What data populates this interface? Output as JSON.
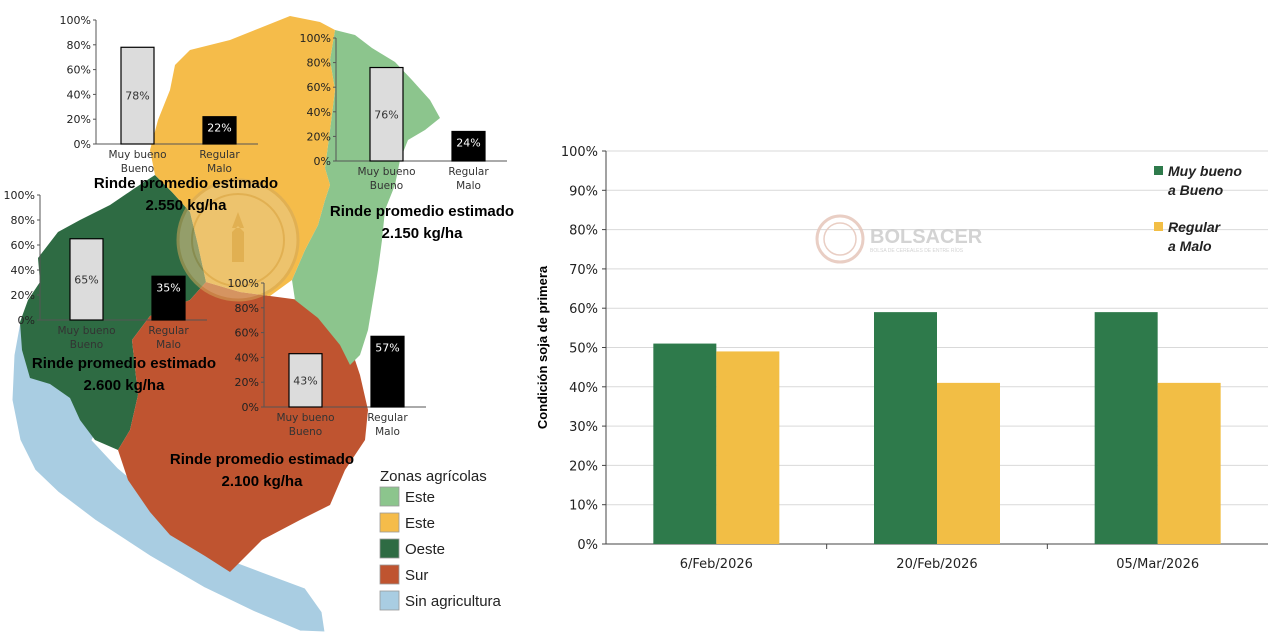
{
  "colors": {
    "este_green": "#8CC58D",
    "este_orange": "#F5BC4A",
    "oeste": "#2E6B43",
    "sur": "#BF5430",
    "sin_agricultura": "#A9CDE2",
    "bar_good": "#DCDCDC",
    "bar_bad": "#000000",
    "series_good": "#2E7A4B",
    "series_bad": "#F2BE45"
  },
  "map": {
    "legend_title": "Zonas agrícolas",
    "legend_items": [
      {
        "label": "Este",
        "color": "#8CC58D"
      },
      {
        "label": "Este",
        "color": "#F5BC4A"
      },
      {
        "label": "Oeste",
        "color": "#2E6B43"
      },
      {
        "label": "Sur",
        "color": "#BF5430"
      },
      {
        "label": "Sin agricultura",
        "color": "#A9CDE2"
      }
    ],
    "watermark_text": "BOLSA DE CEREALES DE ENTRE RÍOS"
  },
  "chart_data": [
    {
      "type": "bar",
      "region": "Este (naranja)",
      "categories": [
        "Muy bueno Bueno",
        "Regular Malo"
      ],
      "values": [
        78,
        22
      ],
      "value_labels": [
        "78%",
        "22%"
      ],
      "ylim": [
        0,
        100
      ],
      "yticks": [
        "0%",
        "20%",
        "40%",
        "60%",
        "80%",
        "100%"
      ],
      "cat_lines": [
        [
          "Muy bueno",
          "Bueno"
        ],
        [
          "Regular",
          "Malo"
        ]
      ],
      "rinde_line1": "Rinde promedio estimado",
      "rinde_line2": "2.550 kg/ha"
    },
    {
      "type": "bar",
      "region": "Este (verde)",
      "categories": [
        "Muy bueno Bueno",
        "Regular Malo"
      ],
      "values": [
        76,
        24
      ],
      "value_labels": [
        "76%",
        "24%"
      ],
      "ylim": [
        0,
        100
      ],
      "yticks": [
        "0%",
        "20%",
        "40%",
        "60%",
        "80%",
        "100%"
      ],
      "cat_lines": [
        [
          "Muy bueno",
          "Bueno"
        ],
        [
          "Regular",
          "Malo"
        ]
      ],
      "rinde_line1": "Rinde promedio estimado",
      "rinde_line2": "2.150 kg/ha"
    },
    {
      "type": "bar",
      "region": "Oeste",
      "categories": [
        "Muy bueno Bueno",
        "Regular Malo"
      ],
      "values": [
        65,
        35
      ],
      "value_labels": [
        "65%",
        "35%"
      ],
      "ylim": [
        0,
        100
      ],
      "yticks": [
        "0%",
        "20%",
        "40%",
        "60%",
        "80%",
        "100%"
      ],
      "cat_lines": [
        [
          "Muy bueno",
          "Bueno"
        ],
        [
          "Regular",
          "Malo"
        ]
      ],
      "rinde_line1": "Rinde promedio estimado",
      "rinde_line2": "2.600 kg/ha"
    },
    {
      "type": "bar",
      "region": "Sur",
      "categories": [
        "Muy bueno Bueno",
        "Regular Malo"
      ],
      "values": [
        43,
        57
      ],
      "value_labels": [
        "43%",
        "57%"
      ],
      "ylim": [
        0,
        100
      ],
      "yticks": [
        "0%",
        "20%",
        "40%",
        "60%",
        "80%",
        "100%"
      ],
      "cat_lines": [
        [
          "Muy bueno",
          "Bueno"
        ],
        [
          "Regular",
          "Malo"
        ]
      ],
      "rinde_line1": "Rinde promedio estimado",
      "rinde_line2": "2.100 kg/ha"
    },
    {
      "type": "bar",
      "categories": [
        "6/Feb/2026",
        "20/Feb/2026",
        "05/Mar/2026"
      ],
      "series": [
        {
          "name": "Muy bueno a Bueno",
          "legend_lines": [
            "Muy bueno",
            "a Bueno"
          ],
          "values": [
            51,
            59,
            59
          ]
        },
        {
          "name": "Regular a Malo",
          "legend_lines": [
            "Regular",
            "a Malo"
          ],
          "values": [
            49,
            41,
            41
          ]
        }
      ],
      "ylabel": "Condición soja de primera",
      "ylim": [
        0,
        100
      ],
      "yticks": [
        "0%",
        "10%",
        "20%",
        "30%",
        "40%",
        "50%",
        "60%",
        "70%",
        "80%",
        "90%",
        "100%"
      ],
      "grid": true,
      "legend": "right",
      "watermark_title": "BOLSACER",
      "watermark_sub": "BOLSA DE CEREALES DE ENTRE RÍOS"
    }
  ]
}
